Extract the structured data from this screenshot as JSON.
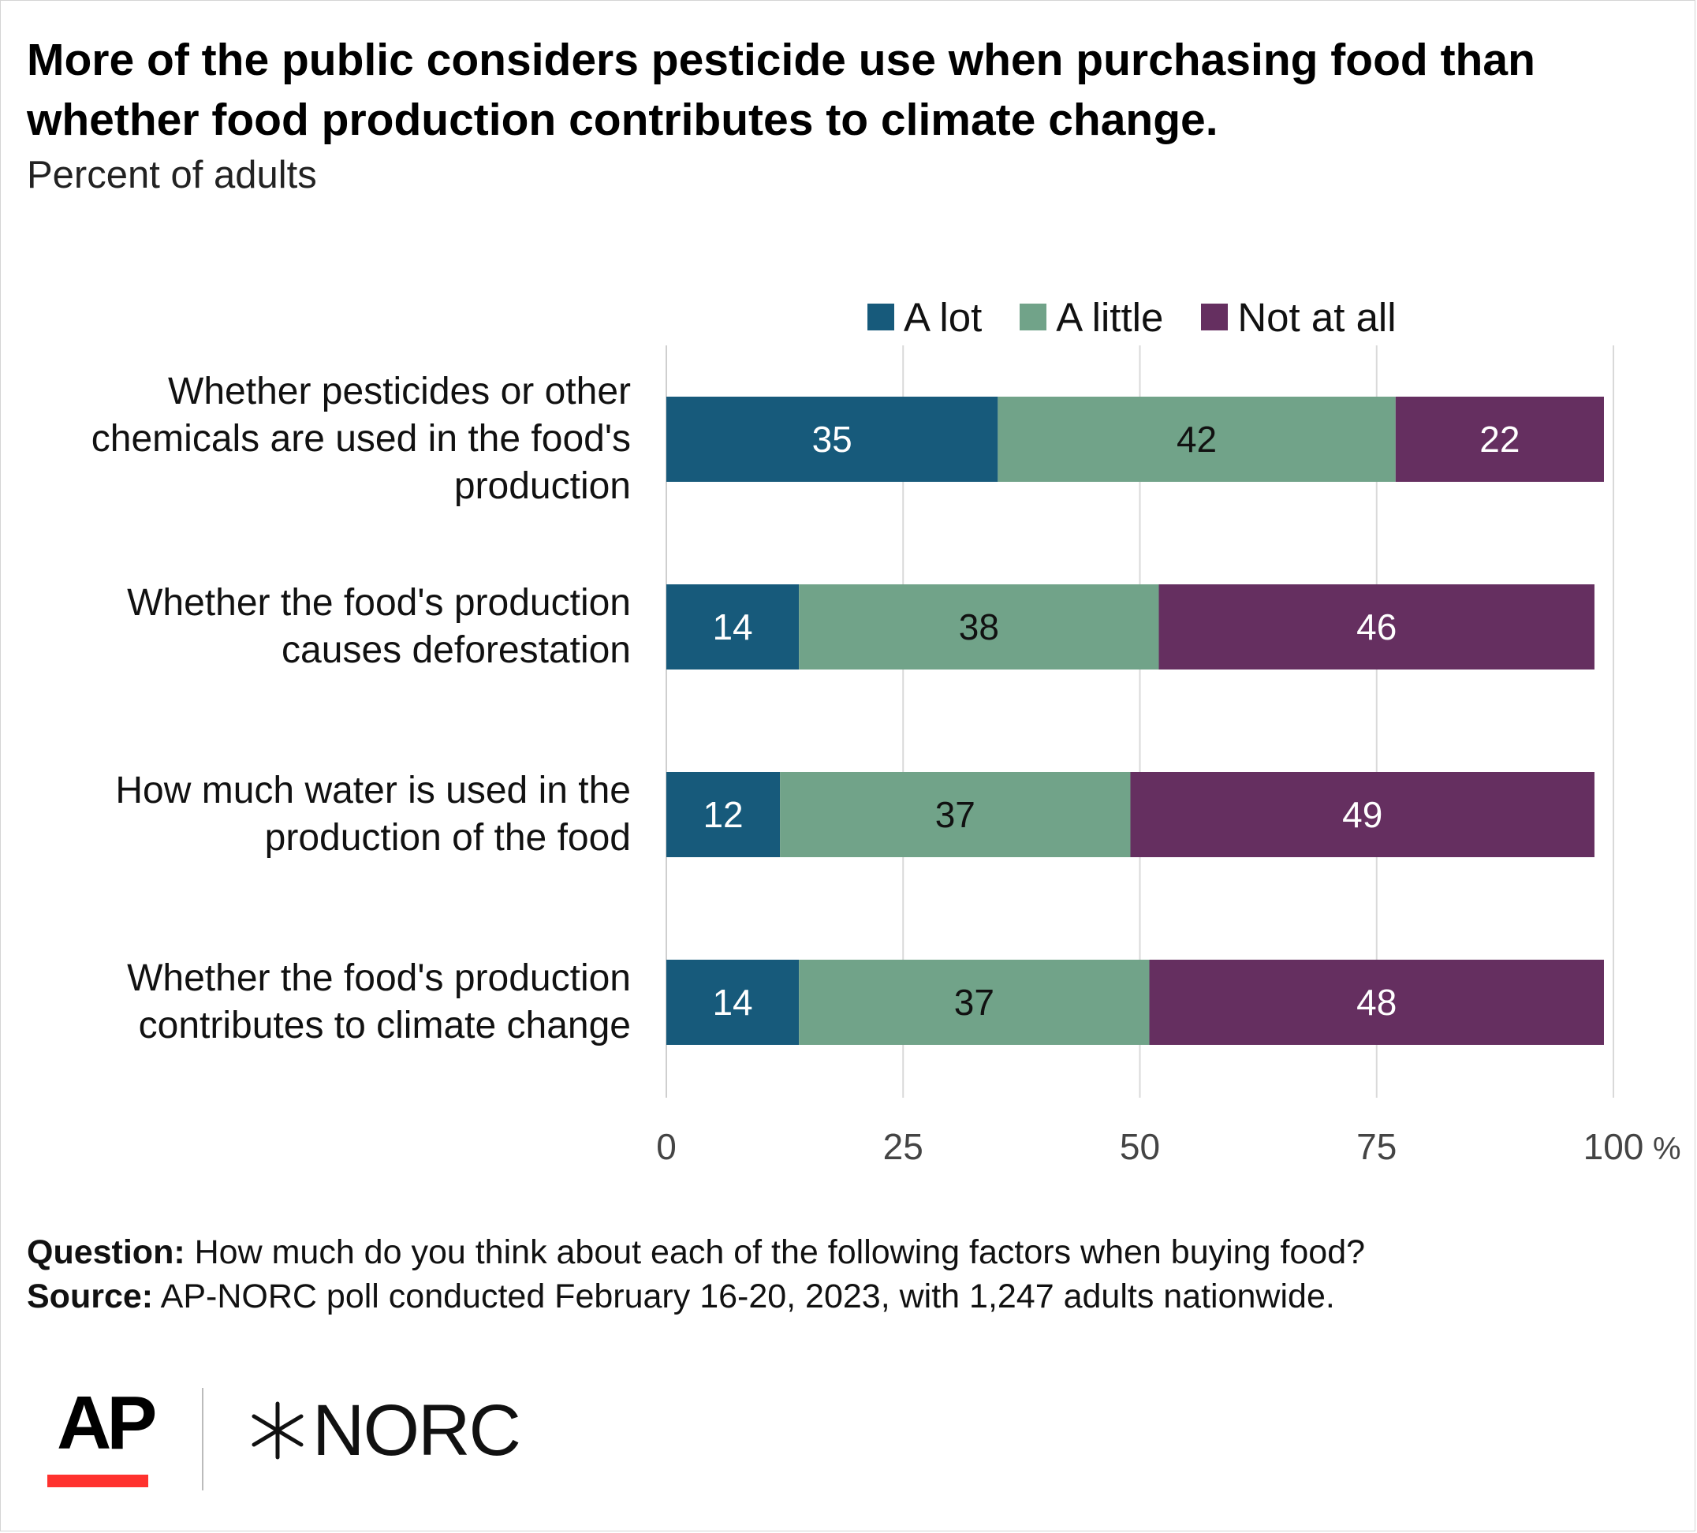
{
  "chart_data": {
    "type": "bar",
    "orientation": "horizontal",
    "stacked": true,
    "title": "More of the public considers pesticide use when purchasing food than whether food production contributes to climate change.",
    "subtitle": "Percent of adults",
    "categories": [
      "Whether pesticides or other chemicals are used in the food's production",
      "Whether the food's production causes deforestation",
      "How much water is used in the production of the food",
      "Whether the food's production contributes to climate change"
    ],
    "series": [
      {
        "name": "A lot",
        "color": "#175a7b",
        "label_color": "#ffffff",
        "values": [
          35,
          14,
          12,
          14
        ]
      },
      {
        "name": "A little",
        "color": "#71a389",
        "label_color": "#111111",
        "values": [
          42,
          38,
          37,
          37
        ]
      },
      {
        "name": "Not at all",
        "color": "#652f60",
        "label_color": "#ffffff",
        "values": [
          22,
          46,
          49,
          48
        ]
      }
    ],
    "xlim": [
      0,
      100
    ],
    "xticks": [
      0,
      25,
      50,
      75,
      100
    ],
    "xtick_labels": [
      "0",
      "25",
      "50",
      "75",
      "100"
    ],
    "x_unit": "%",
    "grid": true,
    "legend_position": "top"
  },
  "footnote": {
    "question_label": "Question:",
    "question_text": " How much do you think about each of the following factors when buying food?",
    "source_label": "Source:",
    "source_text": " AP-NORC poll conducted February 16-20, 2023, with 1,247 adults nationwide."
  },
  "logos": {
    "ap": "AP",
    "norc": "NORC"
  }
}
